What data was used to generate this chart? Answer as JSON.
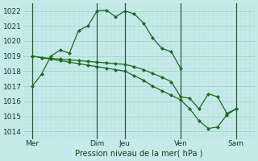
{
  "xlabel": "Pression niveau de la mer( hPa )",
  "ylim": [
    1013.5,
    1022.5
  ],
  "xlim": [
    0,
    12.5
  ],
  "bg_color": "#c5eaea",
  "grid_color_major": "#a0c8c8",
  "grid_color_minor": "#b8dcdc",
  "line_color": "#1a6b1a",
  "vline_color": "#2a5a3a",
  "xtick_labels": [
    "Mer",
    "Dim",
    "Jeu",
    "Ven",
    "Sam"
  ],
  "xtick_positions": [
    0.5,
    4.0,
    5.5,
    8.5,
    11.5
  ],
  "ytick_values": [
    1014,
    1015,
    1016,
    1017,
    1018,
    1019,
    1020,
    1021,
    1022
  ],
  "vline_positions": [
    0.5,
    4.0,
    5.5,
    8.5,
    11.5
  ],
  "line1_x": [
    0.5,
    1.0,
    1.5,
    2.0,
    2.5,
    3.0,
    3.5,
    4.0,
    4.5,
    5.0,
    5.5,
    6.0,
    6.5,
    7.0,
    7.5,
    8.0,
    8.5
  ],
  "line1_y": [
    1017.0,
    1017.8,
    1019.0,
    1019.4,
    1019.2,
    1020.7,
    1021.0,
    1022.0,
    1022.05,
    1021.6,
    1022.0,
    1021.8,
    1021.2,
    1020.2,
    1019.5,
    1019.3,
    1018.2
  ],
  "line2_x": [
    0.5,
    1.0,
    1.5,
    2.0,
    2.5,
    3.0,
    3.5,
    4.0,
    4.5,
    5.0,
    5.5,
    6.0,
    6.5,
    7.0,
    7.5,
    8.0,
    8.5,
    9.0,
    9.5,
    10.0,
    10.5,
    11.0,
    11.5
  ],
  "line2_y": [
    1019.0,
    1018.9,
    1018.85,
    1018.8,
    1018.75,
    1018.7,
    1018.65,
    1018.6,
    1018.55,
    1018.5,
    1018.45,
    1018.3,
    1018.1,
    1017.85,
    1017.6,
    1017.3,
    1016.3,
    1016.2,
    1015.5,
    1016.5,
    1016.3,
    1015.2,
    1015.5
  ],
  "line3_x": [
    0.5,
    1.0,
    1.5,
    2.0,
    2.5,
    3.0,
    3.5,
    4.0,
    4.5,
    5.0,
    5.5,
    6.0,
    6.5,
    7.0,
    7.5,
    8.0,
    8.5,
    9.0,
    9.5,
    10.0,
    10.5,
    11.0,
    11.5
  ],
  "line3_y": [
    1019.0,
    1018.9,
    1018.8,
    1018.7,
    1018.6,
    1018.5,
    1018.4,
    1018.3,
    1018.2,
    1018.1,
    1018.0,
    1017.7,
    1017.4,
    1017.0,
    1016.7,
    1016.4,
    1016.1,
    1015.5,
    1014.7,
    1014.2,
    1014.3,
    1015.1,
    1015.5
  ]
}
